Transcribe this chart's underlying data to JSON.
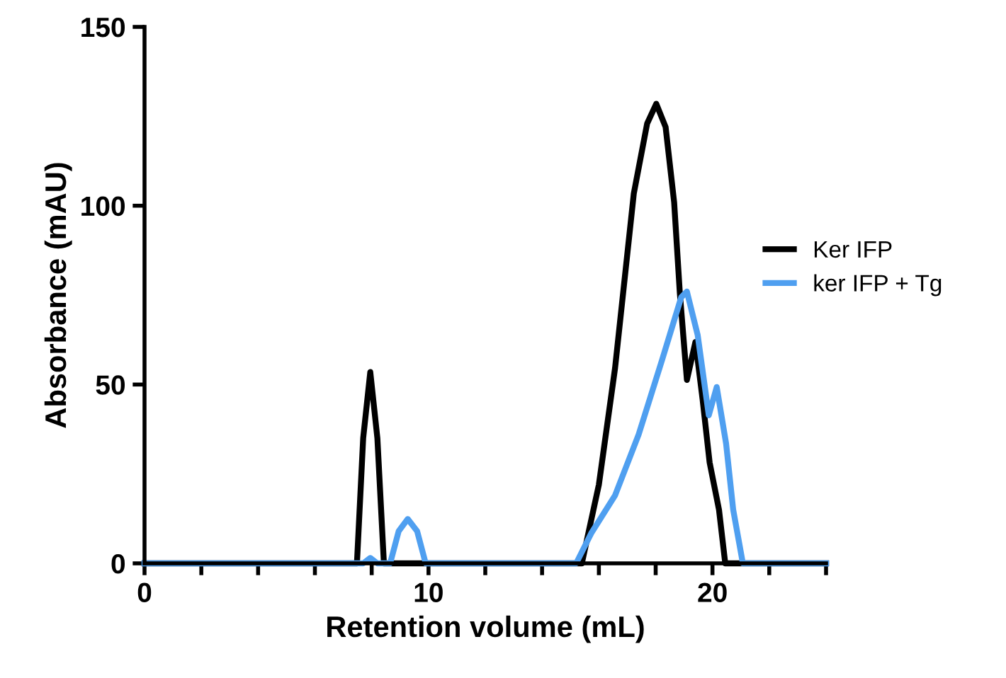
{
  "chart_data": {
    "type": "line",
    "xlabel": "Retention volume (mL)",
    "ylabel": "Absorbance (mAU)",
    "xlim": [
      0,
      24
    ],
    "xticks": [
      0,
      {
        "value": 2,
        "label": null
      },
      {
        "value": 4,
        "label": null
      },
      {
        "value": 6,
        "label": null
      },
      {
        "value": 8,
        "label": null
      },
      10,
      {
        "value": 12,
        "label": null
      },
      {
        "value": 14,
        "label": null
      },
      {
        "value": 16,
        "label": null
      },
      {
        "value": 18,
        "label": null
      },
      20,
      {
        "value": 22,
        "label": null
      },
      {
        "value": 24,
        "label": null
      }
    ],
    "ylim": [
      0,
      150
    ],
    "yticks": [
      0,
      50,
      100,
      150
    ],
    "grid": false,
    "legend": "right",
    "marker": "none",
    "line_style": "solid",
    "series": [
      {
        "name": "Ker IFP",
        "color": "#000000",
        "x": [
          0,
          7.48,
          7.7,
          7.95,
          8.2,
          8.43,
          15.4,
          16.0,
          16.57,
          17.23,
          17.7,
          18.02,
          18.35,
          18.65,
          18.85,
          19.1,
          19.4,
          19.65,
          19.9,
          20.23,
          20.45,
          24
        ],
        "values": [
          0,
          0,
          35,
          53.5,
          35,
          0,
          0,
          22,
          54.6,
          103.4,
          123,
          128.5,
          122,
          101,
          75.7,
          51.3,
          61.9,
          46,
          28.2,
          15,
          0,
          0
        ]
      },
      {
        "name": "ker IFP + Tg",
        "color": "#4f9ff0",
        "x": [
          0,
          7.7,
          7.95,
          8.2,
          8.65,
          8.95,
          9.27,
          9.6,
          9.9,
          15.2,
          15.73,
          16.57,
          17.4,
          18.23,
          18.9,
          19.1,
          19.48,
          19.87,
          20.15,
          20.48,
          20.73,
          21.07,
          24
        ],
        "values": [
          0,
          0,
          1.5,
          0,
          0,
          9,
          12.4,
          9,
          0,
          0,
          8.4,
          19,
          36,
          57,
          74.4,
          76,
          63.8,
          41.4,
          49.3,
          33.5,
          15,
          0,
          0
        ]
      }
    ]
  }
}
